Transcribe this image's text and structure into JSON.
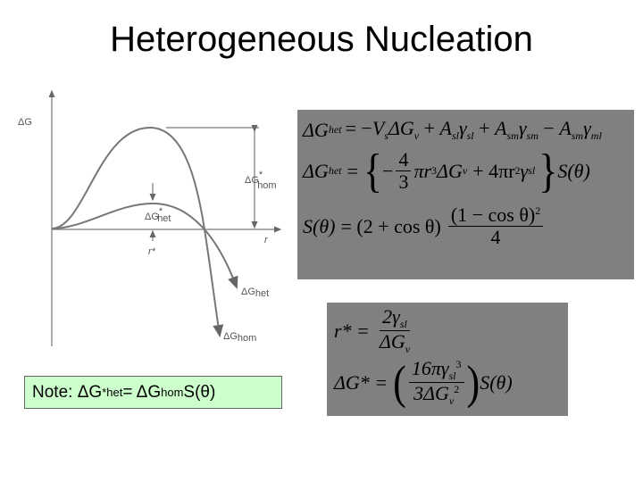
{
  "slide": {
    "title": "Heterogeneous Nucleation"
  },
  "graph": {
    "y_axis_label": "ΔG",
    "x_axis_label": "r",
    "labels": {
      "dg_hom_star": "ΔG",
      "dg_hom_star_sub": "hom",
      "dg_het_star": "ΔG",
      "dg_het_star_sub": "het",
      "r_star": "r*",
      "dg_het": "ΔG",
      "dg_het_sub": "het",
      "dg_hom": "ΔG",
      "dg_hom_sub": "hom",
      "star": "*"
    }
  },
  "equations": {
    "eq1": {
      "lhs": "ΔG",
      "lhs_sub": "het",
      "rhs": [
        {
          "t": "= −",
          "s": "",
          "it": false
        },
        {
          "t": "V",
          "s": "s",
          "it": true
        },
        {
          "t": "ΔG",
          "s": "v",
          "it": true
        },
        {
          "t": " + ",
          "s": "",
          "it": false
        },
        {
          "t": "A",
          "s": "sl",
          "it": true
        },
        {
          "t": "γ",
          "s": "sl",
          "it": true
        },
        {
          "t": " + ",
          "s": "",
          "it": false
        },
        {
          "t": "A",
          "s": "sm",
          "it": true
        },
        {
          "t": "γ",
          "s": "sm",
          "it": true
        },
        {
          "t": " − ",
          "s": "",
          "it": false
        },
        {
          "t": "A",
          "s": "sm",
          "it": true
        },
        {
          "t": "γ",
          "s": "ml",
          "it": true
        }
      ]
    },
    "eq2": {
      "lhs": "ΔG",
      "lhs_sub": "het",
      "eq": "=",
      "lbrace": "{",
      "minus": "−",
      "num": "4",
      "den": "3",
      "term1": "πr",
      "term1_sup": "3",
      "term1b": "ΔG",
      "term1b_sub": "v",
      "plus": "+ 4πr",
      "term2_sup": "2",
      "gamma": "γ",
      "gamma_sub": "sl",
      "rbrace": "}",
      "s": "S(θ)"
    },
    "eq3": {
      "lhs": "S(θ)",
      "eq": "= (2 + cos θ)",
      "num": "(1 − cos θ)",
      "num_sup": "2",
      "den": "4"
    },
    "eq4": {
      "lhs": "r* =",
      "num": "2γ",
      "num_sub": "sl",
      "den": "ΔG",
      "den_sub": "v"
    },
    "eq5": {
      "lhs": "ΔG* =",
      "lparen": "(",
      "num": "16πγ",
      "num_sub": "sl",
      "num_sup": "3",
      "den": "3ΔG",
      "den_sub": "v",
      "den_sup": "2",
      "rparen": ")",
      "s": "S(θ)"
    }
  },
  "note": {
    "prefix": "Note:  ΔG",
    "star": "*",
    "sub1": "het",
    "mid": " = ΔG",
    "sub2": "hom",
    "suffix": " S(θ)"
  },
  "colors": {
    "equation_box": "#808080",
    "note_box": "#ccffcc"
  }
}
